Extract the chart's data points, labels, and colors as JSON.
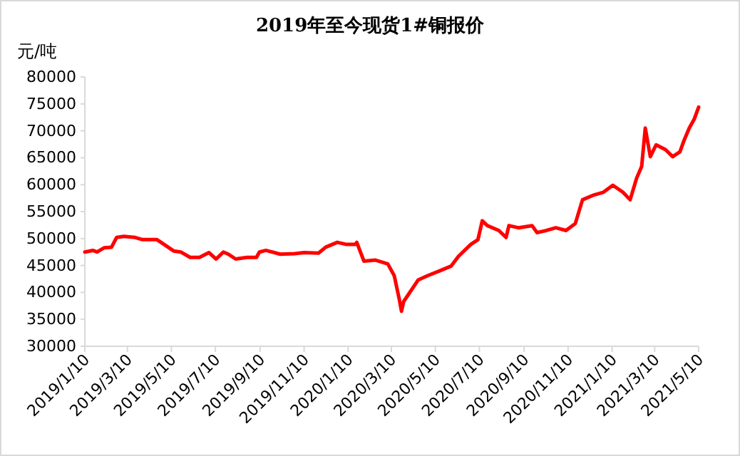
{
  "chart_data": {
    "type": "line",
    "title": "2019年至今现货1#铜报价",
    "ylabel": "元/吨",
    "xlim": [
      "2019-01-10",
      "2021-05-10"
    ],
    "xticks": [
      {
        "value": "2019-01-10",
        "label": "2019/1/10"
      },
      {
        "value": "2019-03-10",
        "label": "2019/3/10"
      },
      {
        "value": "2019-05-10",
        "label": "2019/5/10"
      },
      {
        "value": "2019-07-10",
        "label": "2019/7/10"
      },
      {
        "value": "2019-09-10",
        "label": "2019/9/10"
      },
      {
        "value": "2019-11-10",
        "label": "2019/11/10"
      },
      {
        "value": "2020-01-10",
        "label": "2020/1/10"
      },
      {
        "value": "2020-03-10",
        "label": "2020/3/10"
      },
      {
        "value": "2020-05-10",
        "label": "2020/5/10"
      },
      {
        "value": "2020-07-10",
        "label": "2020/7/10"
      },
      {
        "value": "2020-09-10",
        "label": "2020/9/10"
      },
      {
        "value": "2020-11-10",
        "label": "2020/11/10"
      },
      {
        "value": "2021-01-10",
        "label": "2021/1/10"
      },
      {
        "value": "2021-03-10",
        "label": "2021/3/10"
      },
      {
        "value": "2021-05-10",
        "label": "2021/5/10"
      }
    ],
    "ylim": [
      30000,
      80000
    ],
    "yticks": [
      30000,
      35000,
      40000,
      45000,
      50000,
      55000,
      60000,
      65000,
      70000,
      75000,
      80000
    ],
    "grid": false,
    "marker": "none",
    "line_style": "solid",
    "x": [
      "2019-01-10",
      "2019-01-21",
      "2019-01-27",
      "2019-02-06",
      "2019-02-16",
      "2019-02-23",
      "2019-03-05",
      "2019-03-21",
      "2019-03-31",
      "2019-04-20",
      "2019-04-30",
      "2019-05-13",
      "2019-05-23",
      "2019-06-05",
      "2019-06-18",
      "2019-07-01",
      "2019-07-11",
      "2019-07-21",
      "2019-07-28",
      "2019-08-07",
      "2019-08-23",
      "2019-09-05",
      "2019-09-09",
      "2019-09-18",
      "2019-10-08",
      "2019-10-28",
      "2019-11-10",
      "2019-11-30",
      "2019-12-10",
      "2019-12-26",
      "2020-01-08",
      "2020-01-20",
      "2020-01-22",
      "2020-02-01",
      "2020-02-17",
      "2020-03-05",
      "2020-03-14",
      "2020-03-21",
      "2020-03-24",
      "2020-03-27",
      "2020-04-16",
      "2020-04-29",
      "2020-05-16",
      "2020-06-01",
      "2020-06-11",
      "2020-06-28",
      "2020-07-08",
      "2020-07-14",
      "2020-07-21",
      "2020-08-06",
      "2020-08-16",
      "2020-08-20",
      "2020-09-02",
      "2020-09-21",
      "2020-09-28",
      "2020-10-11",
      "2020-10-24",
      "2020-11-07",
      "2020-11-20",
      "2020-11-30",
      "2020-12-16",
      "2020-12-29",
      "2021-01-11",
      "2021-01-25",
      "2021-02-04",
      "2021-02-13",
      "2021-02-20",
      "2021-02-25",
      "2021-03-04",
      "2021-03-12",
      "2021-03-25",
      "2021-04-04",
      "2021-04-14",
      "2021-04-20",
      "2021-04-27",
      "2021-05-04",
      "2021-05-10"
    ],
    "series": [
      {
        "color": "#ff0000",
        "values": [
          47500,
          47800,
          47500,
          48300,
          48400,
          50200,
          50400,
          50200,
          49800,
          49800,
          48900,
          47700,
          47500,
          46500,
          46500,
          47400,
          46200,
          47500,
          47100,
          46200,
          46500,
          46500,
          47500,
          47800,
          47100,
          47200,
          47400,
          47300,
          48400,
          49300,
          48900,
          48900,
          49300,
          45800,
          46000,
          45300,
          43100,
          38700,
          36500,
          38300,
          42300,
          43100,
          44000,
          44900,
          46700,
          48900,
          49800,
          53300,
          52400,
          51500,
          50200,
          52400,
          52000,
          52400,
          51100,
          51500,
          52000,
          51500,
          52800,
          57200,
          58100,
          58600,
          59900,
          58600,
          57200,
          61200,
          63400,
          70500,
          65200,
          67400,
          66500,
          65200,
          66100,
          68300,
          70500,
          72200,
          74400
        ]
      }
    ]
  }
}
